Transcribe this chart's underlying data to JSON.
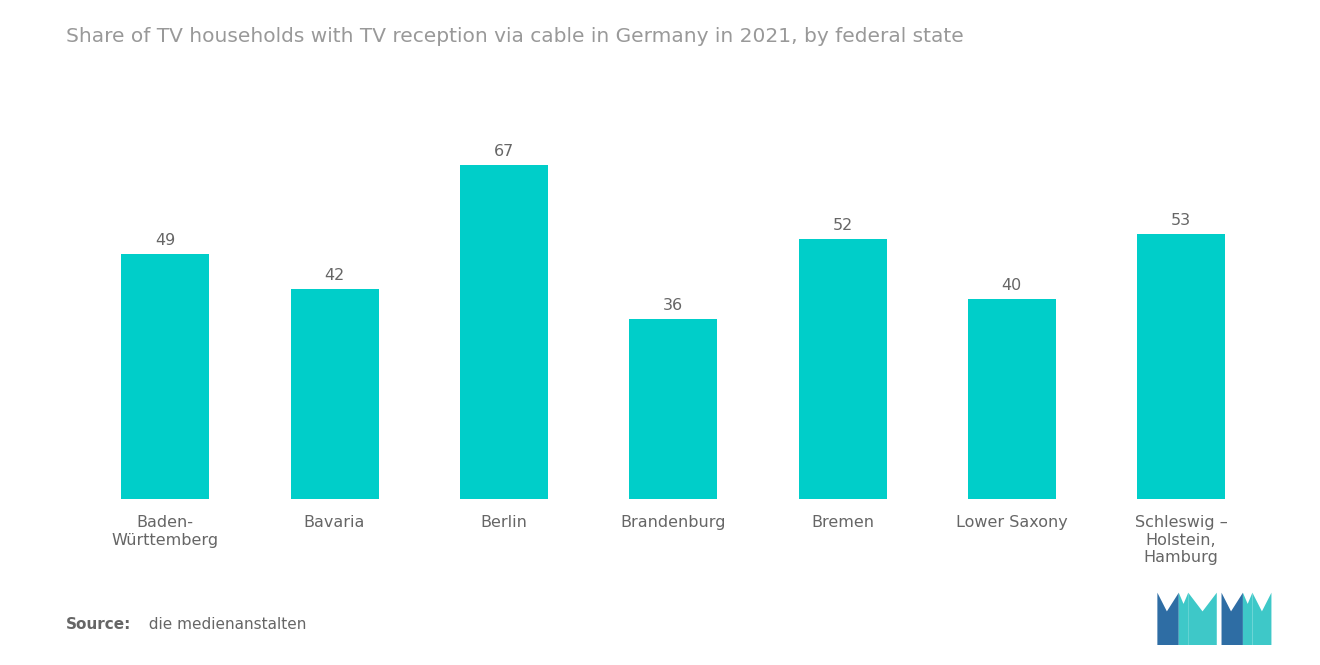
{
  "title": "Share of TV households with TV reception via cable in Germany in 2021, by federal state",
  "categories": [
    "Baden-\nWürttemberg",
    "Bavaria",
    "Berlin",
    "Brandenburg",
    "Bremen",
    "Lower Saxony",
    "Schleswig –\nHolstein,\nHamburg"
  ],
  "values": [
    49,
    42,
    67,
    36,
    52,
    40,
    53
  ],
  "bar_color": "#00CEC9",
  "background_color": "#ffffff",
  "source_bold": "Source:",
  "source_normal": "  die medienanstalten",
  "title_fontsize": 14.5,
  "label_fontsize": 11.5,
  "value_fontsize": 11.5,
  "source_fontsize": 11,
  "ylim": [
    0,
    80
  ],
  "bar_width": 0.52,
  "title_color": "#999999",
  "label_color": "#666666",
  "value_color": "#666666",
  "source_color": "#666666",
  "logo_dark_blue": "#2E6DA4",
  "logo_teal": "#3EC8C8"
}
